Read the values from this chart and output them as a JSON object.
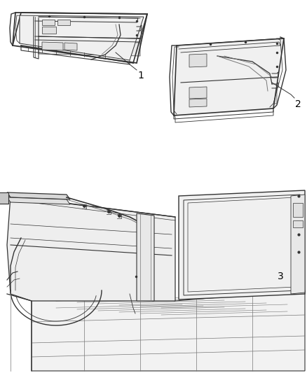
{
  "background_color": "#ffffff",
  "line_color": "#333333",
  "light_line_color": "#777777",
  "label_color": "#000000",
  "label_fontsize": 10,
  "figure_width": 4.38,
  "figure_height": 5.33,
  "dpi": 100
}
